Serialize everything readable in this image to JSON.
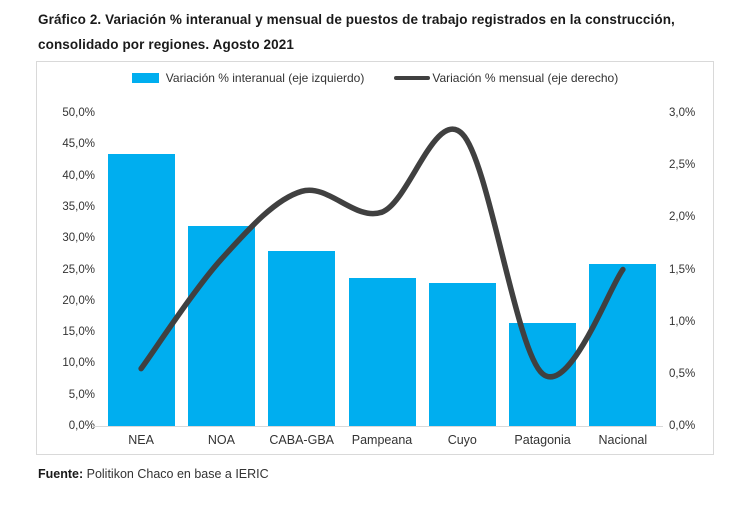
{
  "title": "Gráfico 2. Variación % interanual y mensual de puestos de trabajo registrados en la construcción, consolidado por regiones. Agosto 2021",
  "footer": {
    "label": "Fuente:",
    "text": " Politikon Chaco en base a IERIC"
  },
  "colors": {
    "bar": "#00AEEF",
    "line": "#404040",
    "frame_border": "#d9d9d9",
    "axis_text": "#333333"
  },
  "chart_data": {
    "type": "bar+line combo",
    "categories": [
      "NEA",
      "NOA",
      "CABA-GBA",
      "Pampeana",
      "Cuyo",
      "Patagonia",
      "Nacional"
    ],
    "series": [
      {
        "name": "Variación % interanual (eje izquierdo)",
        "type": "bar",
        "axis": "left",
        "color": "#00AEEF",
        "values": [
          43.4,
          32.0,
          27.9,
          23.6,
          22.8,
          16.5,
          25.9
        ]
      },
      {
        "name": "Variación % mensual (eje derecho)",
        "type": "line",
        "axis": "right",
        "color": "#404040",
        "values": [
          0.55,
          1.6,
          2.25,
          2.05,
          2.8,
          0.5,
          1.5
        ]
      }
    ],
    "left_axis": {
      "min": 0,
      "max": 50,
      "step": 5,
      "tick_labels": [
        "50,0%",
        "45,0%",
        "40,0%",
        "35,0%",
        "30,0%",
        "25,0%",
        "20,0%",
        "15,0%",
        "10,0%",
        "5,0%",
        "0,0%"
      ]
    },
    "right_axis": {
      "min": 0,
      "max": 3,
      "step": 0.5,
      "tick_labels": [
        "3,0%",
        "2,5%",
        "2,0%",
        "1,5%",
        "1,0%",
        "0,5%",
        "0,0%"
      ]
    },
    "grid": false,
    "legend_position": "top"
  }
}
